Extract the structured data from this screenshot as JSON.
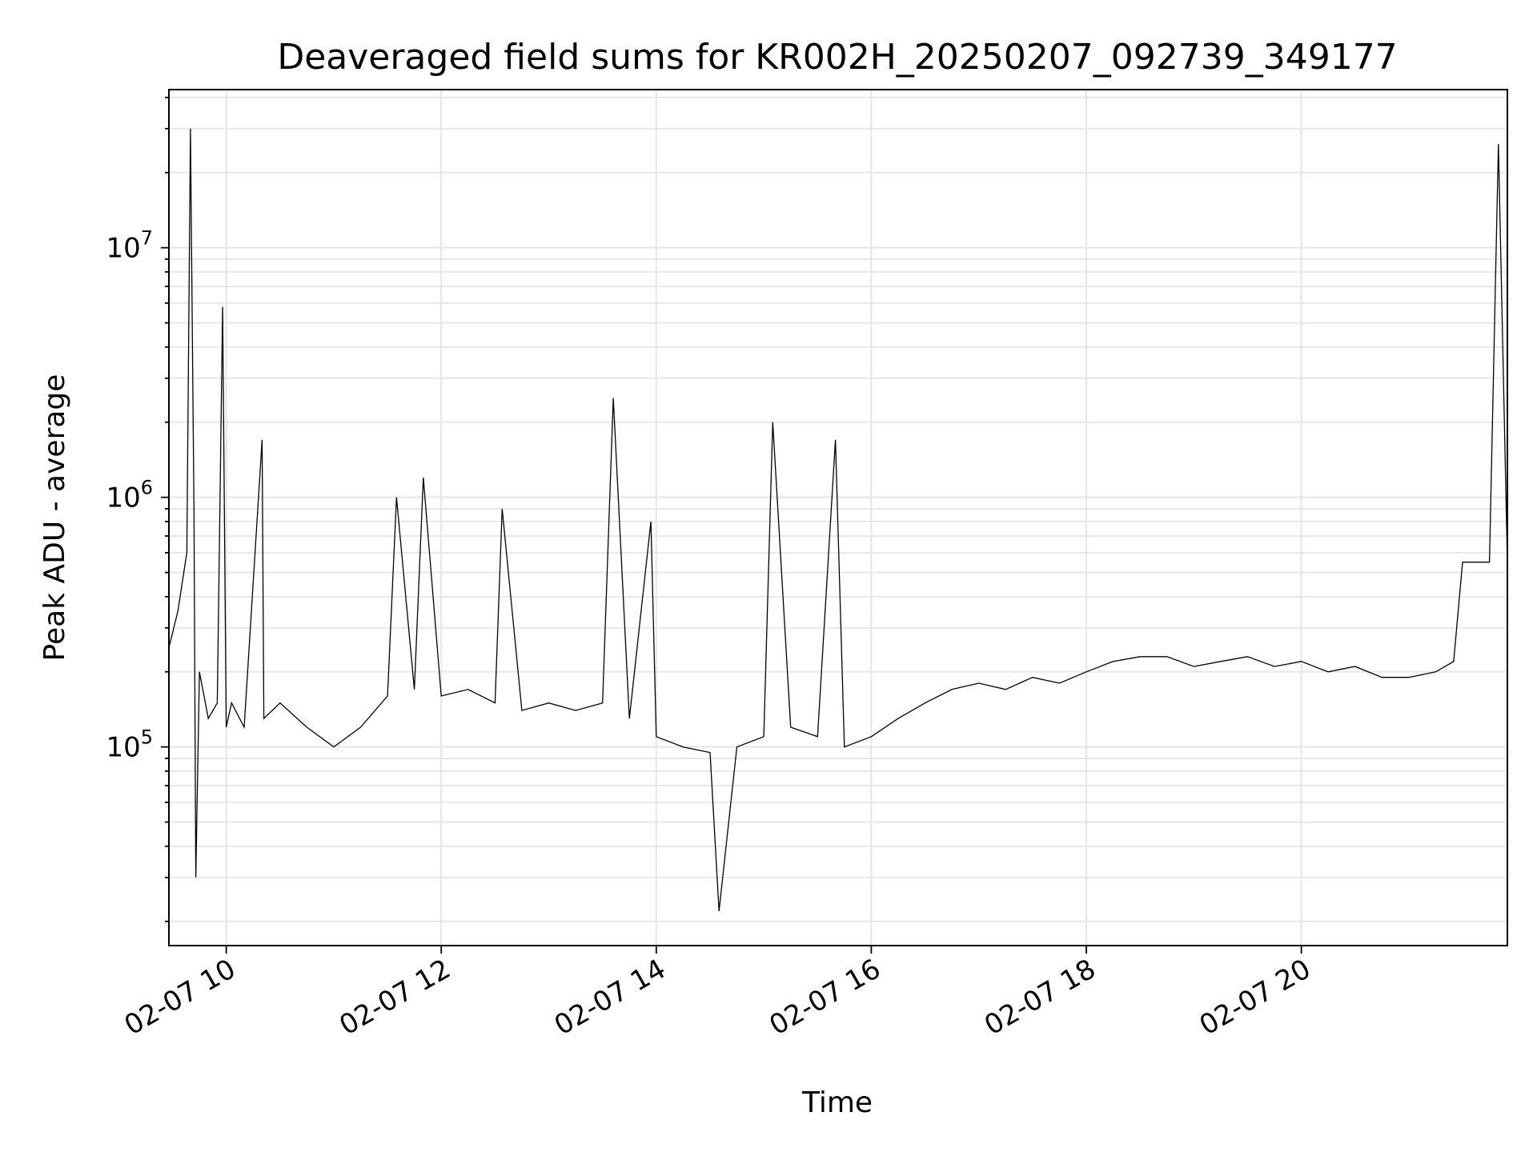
{
  "chart_data": {
    "type": "line",
    "title": "Deaveraged field sums for KR002H_20250207_092739_349177",
    "xlabel": "Time",
    "ylabel": "Peak ADU - average",
    "yscale": "log",
    "ylim": [
      16000,
      43000000
    ],
    "xlim": [
      "2025-02-07 09:28",
      "2025-02-07 21:55"
    ],
    "x_ticks": [
      {
        "value": "2025-02-07 10:00",
        "label": "02-07 10"
      },
      {
        "value": "2025-02-07 12:00",
        "label": "02-07 12"
      },
      {
        "value": "2025-02-07 14:00",
        "label": "02-07 14"
      },
      {
        "value": "2025-02-07 16:00",
        "label": "02-07 16"
      },
      {
        "value": "2025-02-07 18:00",
        "label": "02-07 18"
      },
      {
        "value": "2025-02-07 20:00",
        "label": "02-07 20"
      }
    ],
    "y_ticks": [
      {
        "value": 100000,
        "base": "10",
        "exp": "5"
      },
      {
        "value": 1000000,
        "base": "10",
        "exp": "6"
      },
      {
        "value": 10000000,
        "base": "10",
        "exp": "7"
      }
    ],
    "grid": true,
    "series_color": "#000000",
    "series": [
      {
        "x": [
          "2025-02-07 09:28",
          "2025-02-07 09:33",
          "2025-02-07 09:38",
          "2025-02-07 09:40",
          "2025-02-07 09:42",
          "2025-02-07 09:43",
          "2025-02-07 09:45",
          "2025-02-07 09:50",
          "2025-02-07 09:55",
          "2025-02-07 09:58",
          "2025-02-07 10:00",
          "2025-02-07 10:03",
          "2025-02-07 10:10",
          "2025-02-07 10:20",
          "2025-02-07 10:21",
          "2025-02-07 10:30",
          "2025-02-07 10:45",
          "2025-02-07 11:00",
          "2025-02-07 11:15",
          "2025-02-07 11:30",
          "2025-02-07 11:35",
          "2025-02-07 11:45",
          "2025-02-07 11:50",
          "2025-02-07 12:00",
          "2025-02-07 12:15",
          "2025-02-07 12:30",
          "2025-02-07 12:34",
          "2025-02-07 12:45",
          "2025-02-07 13:00",
          "2025-02-07 13:15",
          "2025-02-07 13:30",
          "2025-02-07 13:36",
          "2025-02-07 13:45",
          "2025-02-07 13:57",
          "2025-02-07 14:00",
          "2025-02-07 14:15",
          "2025-02-07 14:30",
          "2025-02-07 14:35",
          "2025-02-07 14:45",
          "2025-02-07 15:00",
          "2025-02-07 15:05",
          "2025-02-07 15:15",
          "2025-02-07 15:30",
          "2025-02-07 15:40",
          "2025-02-07 15:45",
          "2025-02-07 16:00",
          "2025-02-07 16:15",
          "2025-02-07 16:30",
          "2025-02-07 16:45",
          "2025-02-07 17:00",
          "2025-02-07 17:15",
          "2025-02-07 17:30",
          "2025-02-07 17:45",
          "2025-02-07 18:00",
          "2025-02-07 18:15",
          "2025-02-07 18:30",
          "2025-02-07 18:45",
          "2025-02-07 19:00",
          "2025-02-07 19:15",
          "2025-02-07 19:30",
          "2025-02-07 19:45",
          "2025-02-07 20:00",
          "2025-02-07 20:15",
          "2025-02-07 20:30",
          "2025-02-07 20:45",
          "2025-02-07 21:00",
          "2025-02-07 21:15",
          "2025-02-07 21:25",
          "2025-02-07 21:30",
          "2025-02-07 21:45",
          "2025-02-07 21:50",
          "2025-02-07 21:55"
        ],
        "values": [
          250000,
          350000,
          600000,
          30000000,
          900000,
          30000,
          200000,
          130000,
          150000,
          5800000,
          120000,
          150000,
          120000,
          1700000,
          130000,
          150000,
          120000,
          100000,
          120000,
          160000,
          1000000,
          170000,
          1200000,
          160000,
          170000,
          150000,
          900000,
          140000,
          150000,
          140000,
          150000,
          2500000,
          130000,
          800000,
          110000,
          100000,
          95000,
          22000,
          100000,
          110000,
          2000000,
          120000,
          110000,
          1700000,
          100000,
          110000,
          130000,
          150000,
          170000,
          180000,
          170000,
          190000,
          180000,
          200000,
          220000,
          230000,
          230000,
          210000,
          220000,
          230000,
          210000,
          220000,
          200000,
          210000,
          190000,
          190000,
          200000,
          220000,
          550000,
          550000,
          26000000,
          550000
        ]
      }
    ]
  }
}
